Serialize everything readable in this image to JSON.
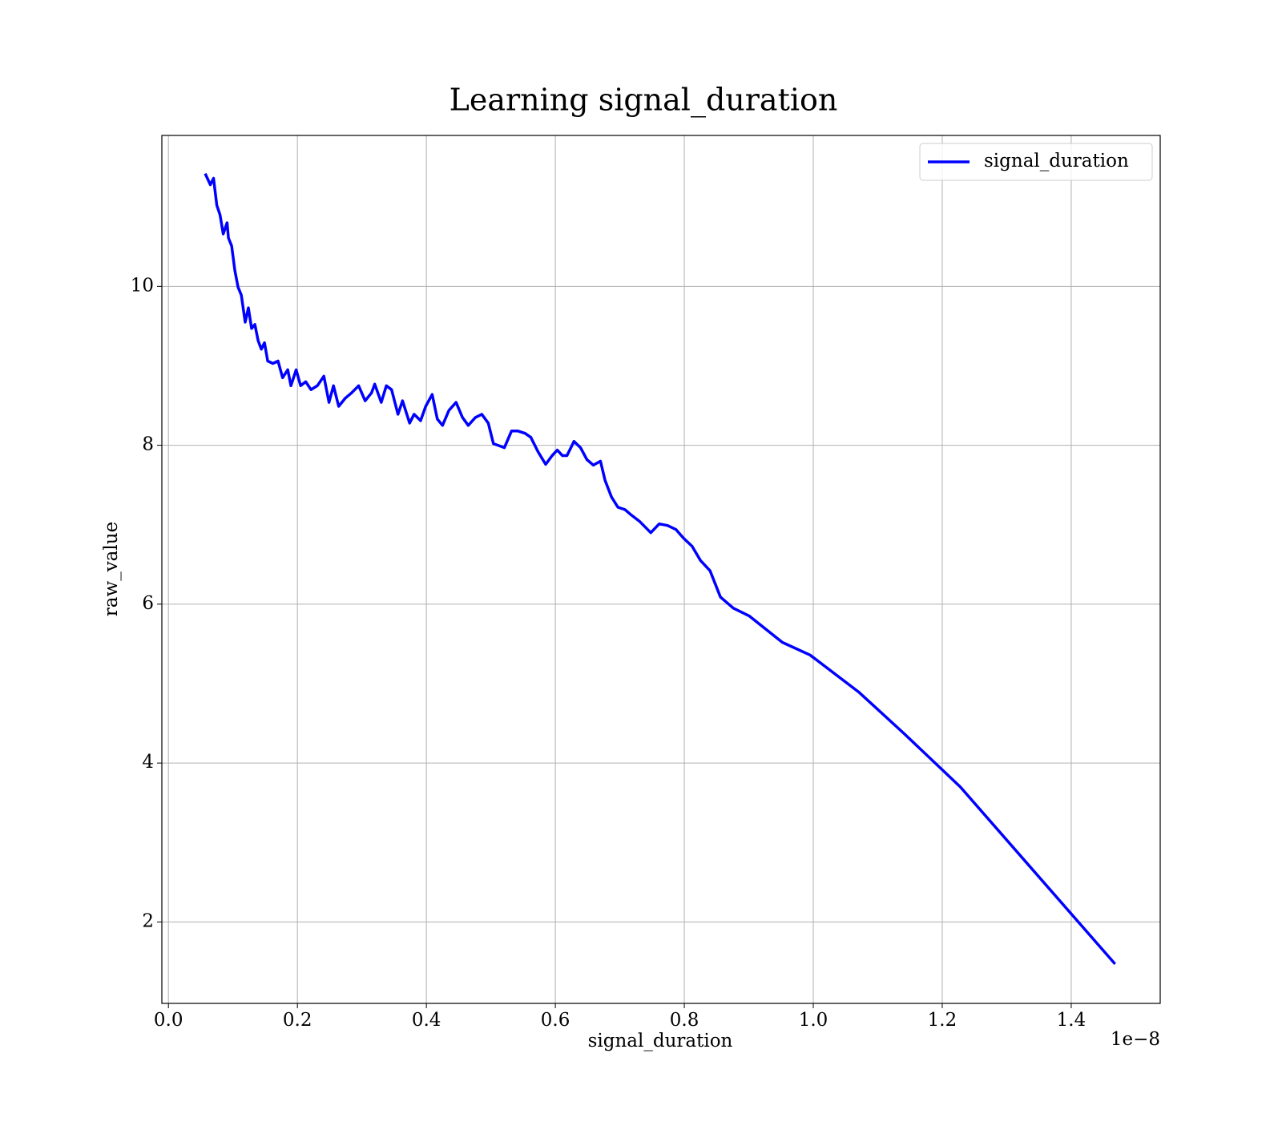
{
  "chart_data": {
    "type": "line",
    "title": "Learning signal_duration",
    "x_label": "signal_duration",
    "y_label": "raw_value",
    "x_offset_label": "1e−8",
    "x": [
      0.057,
      0.065,
      0.07,
      0.075,
      0.08,
      0.085,
      0.091,
      0.093,
      0.098,
      0.103,
      0.108,
      0.113,
      0.119,
      0.124,
      0.129,
      0.134,
      0.139,
      0.144,
      0.149,
      0.154,
      0.162,
      0.17,
      0.177,
      0.185,
      0.19,
      0.198,
      0.205,
      0.213,
      0.221,
      0.231,
      0.241,
      0.249,
      0.256,
      0.264,
      0.274,
      0.284,
      0.295,
      0.305,
      0.315,
      0.32,
      0.33,
      0.338,
      0.346,
      0.356,
      0.363,
      0.374,
      0.381,
      0.391,
      0.399,
      0.409,
      0.417,
      0.425,
      0.435,
      0.446,
      0.456,
      0.465,
      0.476,
      0.486,
      0.496,
      0.504,
      0.511,
      0.521,
      0.532,
      0.542,
      0.553,
      0.562,
      0.573,
      0.585,
      0.595,
      0.603,
      0.611,
      0.618,
      0.629,
      0.639,
      0.649,
      0.659,
      0.67,
      0.677,
      0.687,
      0.697,
      0.708,
      0.718,
      0.731,
      0.748,
      0.761,
      0.774,
      0.787,
      0.799,
      0.812,
      0.825,
      0.84,
      0.856,
      0.876,
      0.901,
      0.952,
      0.995,
      1.071,
      1.141,
      1.228,
      1.468
    ],
    "series": [
      {
        "name": "signal_duration",
        "color": "#0000ff",
        "values": [
          11.42,
          11.28,
          11.36,
          11.02,
          10.9,
          10.66,
          10.8,
          10.61,
          10.51,
          10.2,
          9.99,
          9.89,
          9.55,
          9.73,
          9.47,
          9.52,
          9.32,
          9.21,
          9.29,
          9.06,
          9.03,
          9.06,
          8.85,
          8.95,
          8.75,
          8.95,
          8.75,
          8.8,
          8.7,
          8.75,
          8.87,
          8.54,
          8.75,
          8.49,
          8.59,
          8.66,
          8.75,
          8.56,
          8.66,
          8.77,
          8.54,
          8.75,
          8.7,
          8.39,
          8.56,
          8.28,
          8.39,
          8.31,
          8.49,
          8.64,
          8.33,
          8.25,
          8.44,
          8.54,
          8.35,
          8.25,
          8.35,
          8.39,
          8.28,
          8.02,
          8.0,
          7.97,
          8.18,
          8.18,
          8.15,
          8.1,
          7.92,
          7.76,
          7.87,
          7.94,
          7.87,
          7.87,
          8.05,
          7.97,
          7.82,
          7.75,
          7.8,
          7.56,
          7.35,
          7.22,
          7.19,
          7.12,
          7.04,
          6.9,
          7.01,
          6.99,
          6.94,
          6.83,
          6.73,
          6.55,
          6.42,
          6.09,
          5.95,
          5.85,
          5.52,
          5.36,
          4.89,
          4.37,
          3.7,
          1.47
        ]
      }
    ],
    "xlim": [
      -0.0102,
      1.538
    ],
    "ylim": [
      0.975,
      11.9
    ],
    "xticks": [
      {
        "value": 0,
        "label": "0.0"
      },
      {
        "value": 0.2,
        "label": "0.2"
      },
      {
        "value": 0.4,
        "label": "0.4"
      },
      {
        "value": 0.6,
        "label": "0.6"
      },
      {
        "value": 0.8,
        "label": "0.8"
      },
      {
        "value": 1,
        "label": "1.0"
      },
      {
        "value": 1.2,
        "label": "1.2"
      },
      {
        "value": 1.4,
        "label": "1.4"
      }
    ],
    "yticks": [
      2,
      4,
      6,
      8,
      10
    ],
    "grid": true,
    "legend": "upper-right"
  }
}
